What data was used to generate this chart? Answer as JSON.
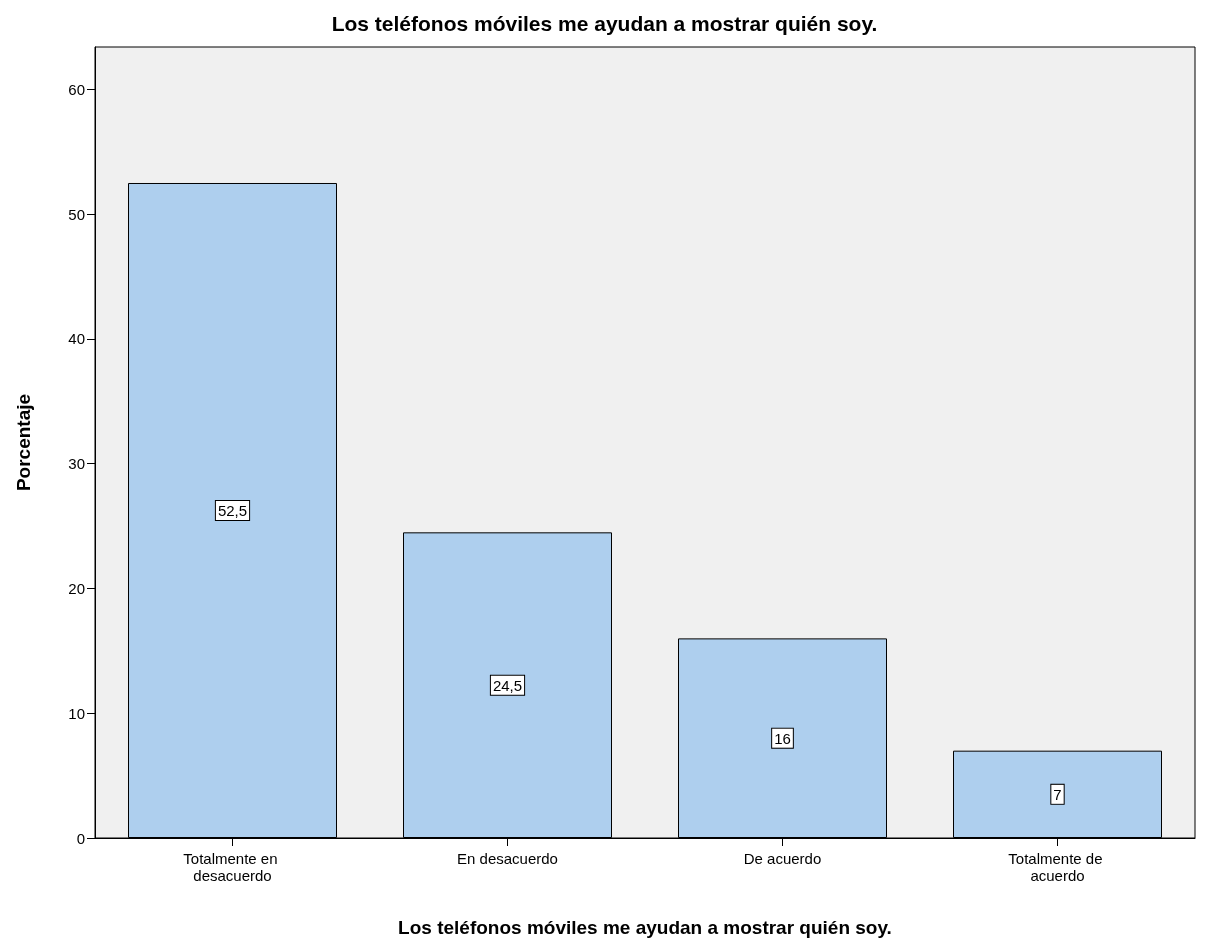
{
  "chart_data": {
    "type": "bar",
    "title": "Los teléfonos móviles me ayudan a mostrar quién soy.",
    "xlabel": "Los teléfonos móviles me ayudan a mostrar quién soy.",
    "ylabel": "Porcentaje",
    "categories": [
      "Totalmente en desacuerdo",
      "En desacuerdo",
      "De acuerdo",
      "Totalmente de acuerdo"
    ],
    "values": [
      52.5,
      24.5,
      16,
      7
    ],
    "value_labels": [
      "52,5",
      "24,5",
      "16",
      "7"
    ],
    "color": "#aecfee",
    "ylim": [
      0,
      63.4
    ],
    "yticks": [
      0,
      10,
      20,
      30,
      40,
      50,
      60
    ]
  }
}
